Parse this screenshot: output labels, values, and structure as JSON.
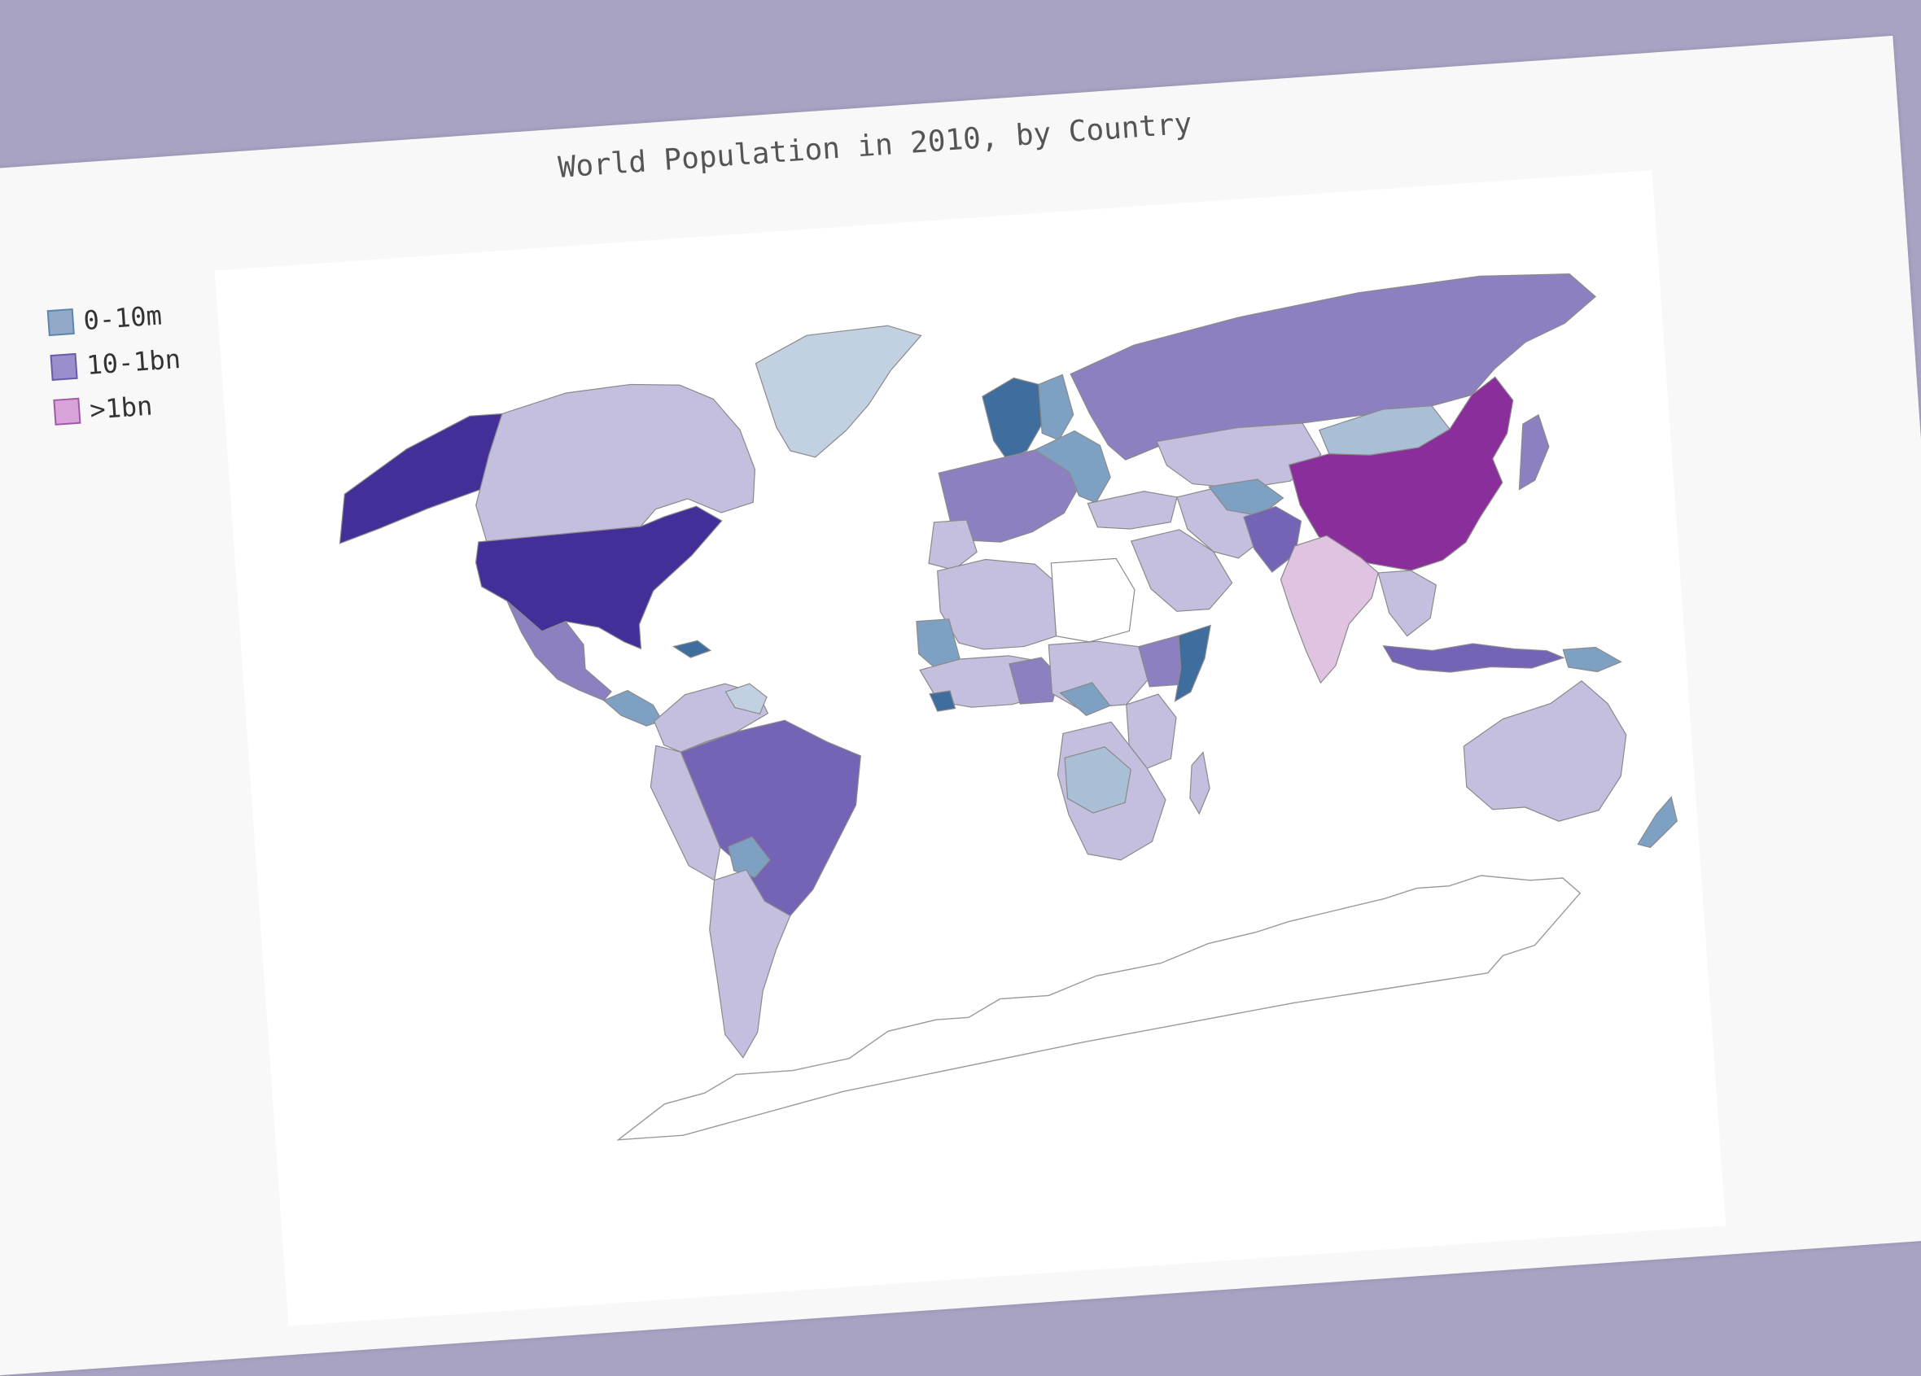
{
  "title": "World Population in 2010, by Country",
  "legend": [
    {
      "label": "0-10m",
      "color": "#92aac8",
      "border": "#5b86ad"
    },
    {
      "label": "10-1bn",
      "color": "#9a8fcc",
      "border": "#6a5aa8"
    },
    {
      "label": ">1bn",
      "color": "#d7a3d8",
      "border": "#a05aa8"
    }
  ],
  "colors": {
    "background": "#a8a3c3",
    "sheet": "#f8f8f8",
    "plot": "#ffffff",
    "border": "#8a8a8a",
    "light_lavender": "#c4bedf",
    "mid_purple": "#8c80c1",
    "dark_purple": "#442f98",
    "deep_purple": "#7563b5",
    "magenta": "#8a2e9b",
    "pink": "#dfc3e1",
    "steel_blue": "#7ea0c3",
    "dark_blue": "#3f6e9e",
    "pale_blue": "#c1d1e1"
  }
}
